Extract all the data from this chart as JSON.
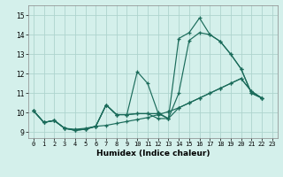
{
  "xlabel": "Humidex (Indice chaleur)",
  "xlim": [
    -0.5,
    23.5
  ],
  "ylim": [
    8.7,
    15.5
  ],
  "xticks": [
    0,
    1,
    2,
    3,
    4,
    5,
    6,
    7,
    8,
    9,
    10,
    11,
    12,
    13,
    14,
    15,
    16,
    17,
    18,
    19,
    20,
    21,
    22,
    23
  ],
  "yticks": [
    9,
    10,
    11,
    12,
    13,
    14,
    15
  ],
  "line_color": "#1a6b5a",
  "bg_color": "#d4f0eb",
  "grid_color": "#aed4ce",
  "line1_x": [
    0,
    1,
    2,
    3,
    4,
    5,
    6,
    7,
    8,
    9,
    10,
    11,
    12,
    13,
    14,
    15,
    16,
    17,
    18,
    19,
    20,
    21,
    22
  ],
  "line1_y": [
    10.1,
    9.5,
    9.6,
    9.2,
    9.1,
    9.15,
    9.3,
    10.4,
    9.9,
    9.9,
    12.1,
    11.5,
    10.0,
    9.7,
    13.8,
    14.1,
    14.85,
    14.0,
    13.65,
    13.0,
    12.25,
    11.0,
    10.75
  ],
  "line2_x": [
    0,
    1,
    2,
    3,
    4,
    5,
    6,
    7,
    8,
    9,
    10,
    11,
    12,
    13,
    14,
    15,
    16,
    17,
    18,
    19,
    20,
    21,
    22
  ],
  "line2_y": [
    10.1,
    9.5,
    9.6,
    9.2,
    9.1,
    9.15,
    9.3,
    10.4,
    9.9,
    9.9,
    9.95,
    9.95,
    9.95,
    9.7,
    11.0,
    13.7,
    14.1,
    14.0,
    13.65,
    13.0,
    12.25,
    11.0,
    10.75
  ],
  "line3_x": [
    0,
    1,
    2,
    3,
    4,
    5,
    6,
    7,
    8,
    9,
    10,
    11,
    12,
    13,
    14,
    15,
    16,
    17,
    18,
    19,
    20,
    21,
    22
  ],
  "line3_y": [
    10.1,
    9.5,
    9.6,
    9.2,
    9.15,
    9.2,
    9.3,
    9.35,
    9.45,
    9.55,
    9.65,
    9.75,
    9.9,
    10.05,
    10.25,
    10.5,
    10.75,
    11.0,
    11.25,
    11.5,
    11.75,
    11.1,
    10.75
  ],
  "line4_x": [
    0,
    1,
    2,
    3,
    4,
    5,
    6,
    7,
    8,
    9,
    10,
    11,
    12,
    13,
    14,
    15,
    16,
    17,
    18,
    19,
    20,
    21,
    22
  ],
  "line4_y": [
    10.1,
    9.5,
    9.6,
    9.2,
    9.1,
    9.15,
    9.3,
    10.4,
    9.9,
    9.9,
    9.95,
    9.95,
    9.7,
    9.7,
    10.25,
    10.5,
    10.75,
    11.0,
    11.25,
    11.5,
    11.75,
    11.1,
    10.75
  ]
}
